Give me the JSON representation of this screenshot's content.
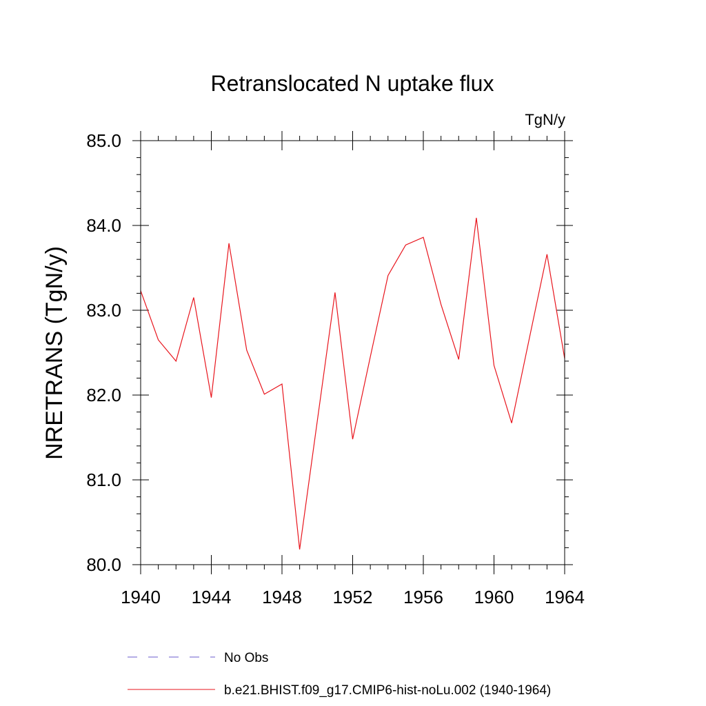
{
  "chart_data": {
    "type": "line",
    "title": "Retranslocated N uptake flux",
    "units": "TgN/y",
    "ylabel": "NRETRANS  (TgN/y)",
    "xlabel": "",
    "xlim": [
      1940,
      1964
    ],
    "ylim": [
      80.0,
      85.0
    ],
    "x_ticks": [
      1940,
      1944,
      1948,
      1952,
      1956,
      1960,
      1964
    ],
    "y_ticks": [
      80.0,
      81.0,
      82.0,
      83.0,
      84.0,
      85.0
    ],
    "x_tick_labels": [
      "1940",
      "1944",
      "1948",
      "1952",
      "1956",
      "1960",
      "1964"
    ],
    "y_tick_labels": [
      "80.0",
      "81.0",
      "82.0",
      "83.0",
      "84.0",
      "85.0"
    ],
    "grid": false,
    "legend_position": "bottom",
    "series": [
      {
        "name": "No Obs",
        "color": "#6a5acd",
        "dash": "dashed",
        "x": [],
        "values": []
      },
      {
        "name": "b.e21.BHIST.f09_g17.CMIP6-hist-noLu.002 (1940-1964)",
        "color": "#e8141c",
        "dash": "solid",
        "x": [
          1940,
          1941,
          1942,
          1943,
          1944,
          1945,
          1946,
          1947,
          1948,
          1949,
          1950,
          1951,
          1952,
          1953,
          1954,
          1955,
          1956,
          1957,
          1958,
          1959,
          1960,
          1961,
          1962,
          1963,
          1964
        ],
        "values": [
          83.23,
          82.65,
          82.4,
          83.15,
          81.97,
          83.79,
          82.53,
          82.01,
          82.13,
          80.18,
          81.7,
          83.21,
          81.48,
          82.45,
          83.41,
          83.77,
          83.86,
          83.07,
          82.42,
          84.09,
          82.35,
          81.67,
          82.67,
          83.66,
          82.43
        ]
      }
    ]
  }
}
